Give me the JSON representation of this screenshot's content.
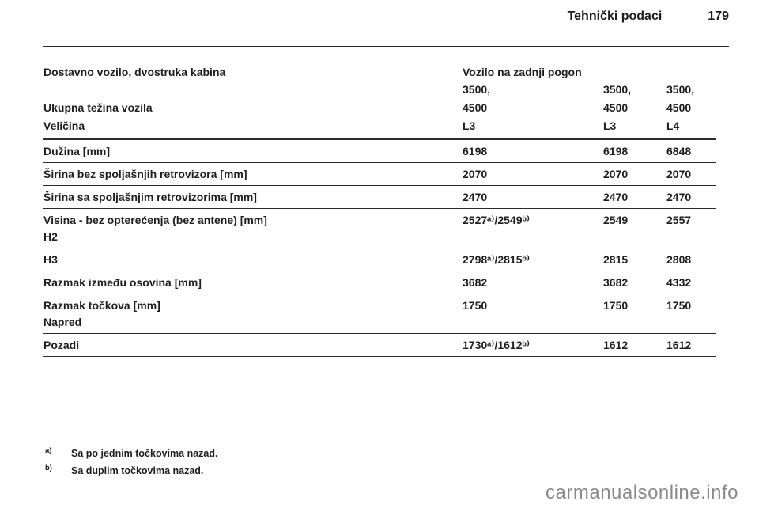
{
  "page_header": {
    "title": "Tehnički podaci",
    "page_number": "179"
  },
  "table": {
    "group_header_left": "Dostavno vozilo, dvostruka kabina",
    "group_header_right": "Vozilo na zadnji pogon",
    "weight_row": {
      "label": "Ukupna težina vozila",
      "values_line1": [
        "3500,",
        "3500,",
        "3500,"
      ],
      "values_line2": [
        "4500",
        "4500",
        "4500"
      ]
    },
    "size_row": {
      "label": "Veličina",
      "values": [
        "L3",
        "L3",
        "L4"
      ]
    },
    "rows": [
      {
        "label": "Dužina [mm]",
        "values": [
          "6198",
          "6198",
          "6848"
        ]
      },
      {
        "label": "Širina bez spoljašnjih retrovizora [mm]",
        "values": [
          "2070",
          "2070",
          "2070"
        ]
      },
      {
        "label": "Širina sa spoljašnjim retrovizorima [mm]",
        "values": [
          "2470",
          "2470",
          "2470"
        ]
      },
      {
        "label": "Visina - bez opterećenja (bez antene) [mm]",
        "sublabel": "H2",
        "values": [
          "2527ᵃ⁾/2549ᵇ⁾",
          "2549",
          "2557"
        ]
      },
      {
        "label": "H3",
        "values": [
          "2798ᵃ⁾/2815ᵇ⁾",
          "2815",
          "2808"
        ]
      },
      {
        "label": "Razmak između osovina [mm]",
        "values": [
          "3682",
          "3682",
          "4332"
        ]
      },
      {
        "label": "Razmak točkova [mm]",
        "sublabel": "Napred",
        "values": [
          "1750",
          "1750",
          "1750"
        ]
      },
      {
        "label": "Pozadi",
        "values": [
          "1730ᵃ⁾/1612ᵇ⁾",
          "1612",
          "1612"
        ]
      }
    ]
  },
  "footnotes": [
    {
      "marker": "a)",
      "text": "Sa po jednim točkovima nazad."
    },
    {
      "marker": "b)",
      "text": "Sa duplim točkovima nazad."
    }
  ],
  "watermark": "carmanualsonline.info"
}
